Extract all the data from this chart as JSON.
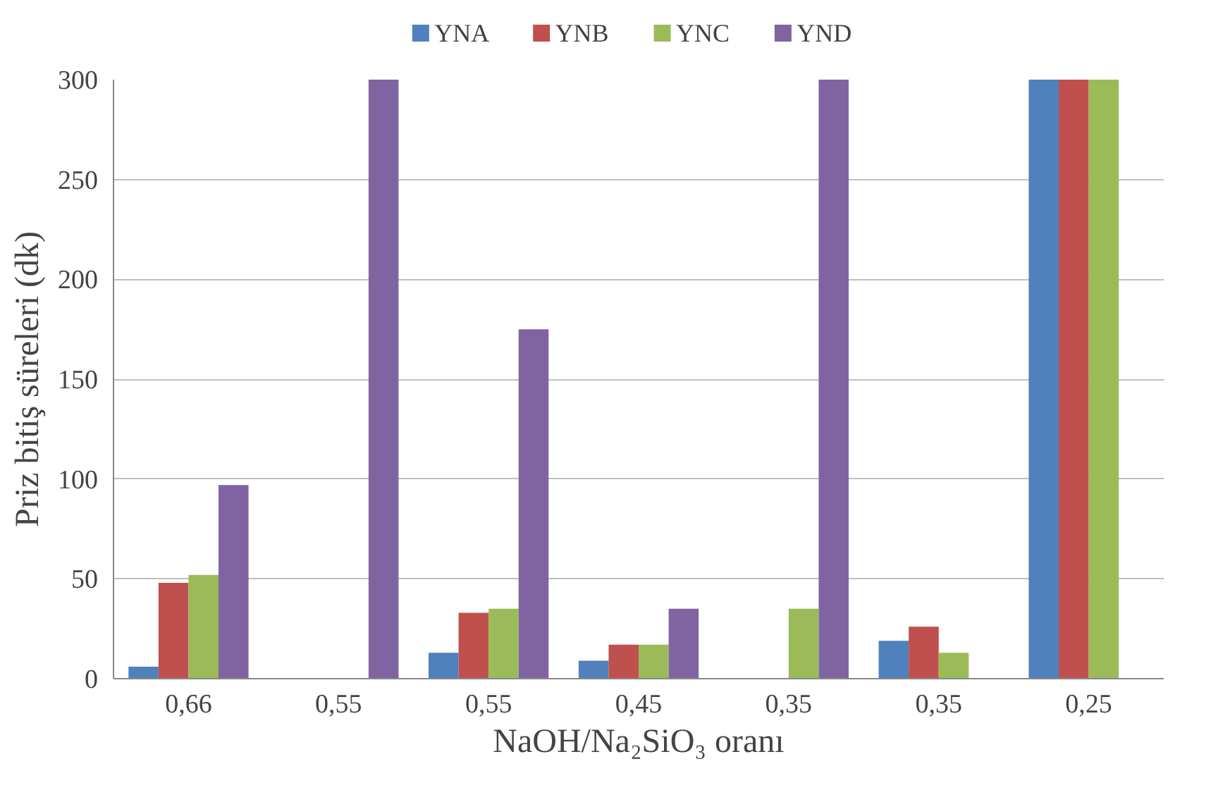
{
  "chart_data": {
    "type": "bar",
    "xlabel": "NaOH/Na₂SiO₃ oranı",
    "ylabel": "Priz bitiş süreleri (dk)",
    "categories": [
      "0,66",
      "0,55",
      "0,55",
      "0,45",
      "0,35",
      "0,35",
      "0,25"
    ],
    "series": [
      {
        "name": "YNA",
        "color": "#4f81bd",
        "values": [
          6,
          null,
          13,
          9,
          null,
          19,
          300
        ]
      },
      {
        "name": "YNB",
        "color": "#c0504d",
        "values": [
          48,
          null,
          33,
          17,
          null,
          26,
          300
        ]
      },
      {
        "name": "YNC",
        "color": "#9bbb59",
        "values": [
          52,
          null,
          35,
          17,
          35,
          13,
          300
        ]
      },
      {
        "name": "YND",
        "color": "#8064a2",
        "values": [
          97,
          300,
          175,
          35,
          300,
          null,
          null
        ]
      }
    ],
    "ylim": [
      0,
      300
    ],
    "yticks": [
      0,
      50,
      100,
      150,
      200,
      250,
      300
    ],
    "grid": "y",
    "legend": "top"
  }
}
